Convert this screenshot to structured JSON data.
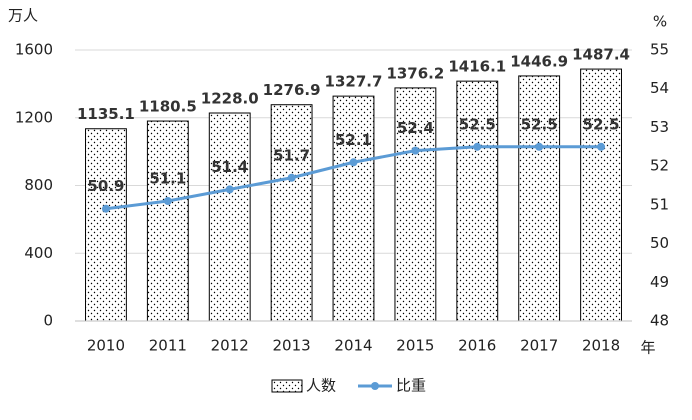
{
  "chart_data": {
    "type": "bar",
    "y_unit": "万人",
    "y2_unit": "%",
    "x_unit": "年",
    "categories": [
      "2010",
      "2011",
      "2012",
      "2013",
      "2014",
      "2015",
      "2016",
      "2017",
      "2018"
    ],
    "series": [
      {
        "name": "人数",
        "type": "bar",
        "color": "#000000",
        "values": [
          1135.1,
          1180.5,
          1228.0,
          1276.9,
          1327.7,
          1376.2,
          1416.1,
          1446.9,
          1487.4
        ],
        "value_labels": [
          "1135.1",
          "1180.5",
          "1228.0",
          "1276.9",
          "1327.7",
          "1376.2",
          "1416.1",
          "1446.9",
          "1487.4"
        ]
      },
      {
        "name": "比重",
        "type": "line",
        "axis": "y2",
        "color": "#5b9bd5",
        "values": [
          50.9,
          51.1,
          51.4,
          51.7,
          52.1,
          52.4,
          52.5,
          52.5,
          52.5
        ]
      }
    ],
    "ylim": [
      0,
      1600
    ],
    "yticks": [
      0,
      400,
      800,
      1200,
      1600
    ],
    "y2lim": [
      48,
      55
    ],
    "y2ticks": [
      48,
      49,
      50,
      51,
      52,
      53,
      54,
      55
    ],
    "grid": true
  }
}
